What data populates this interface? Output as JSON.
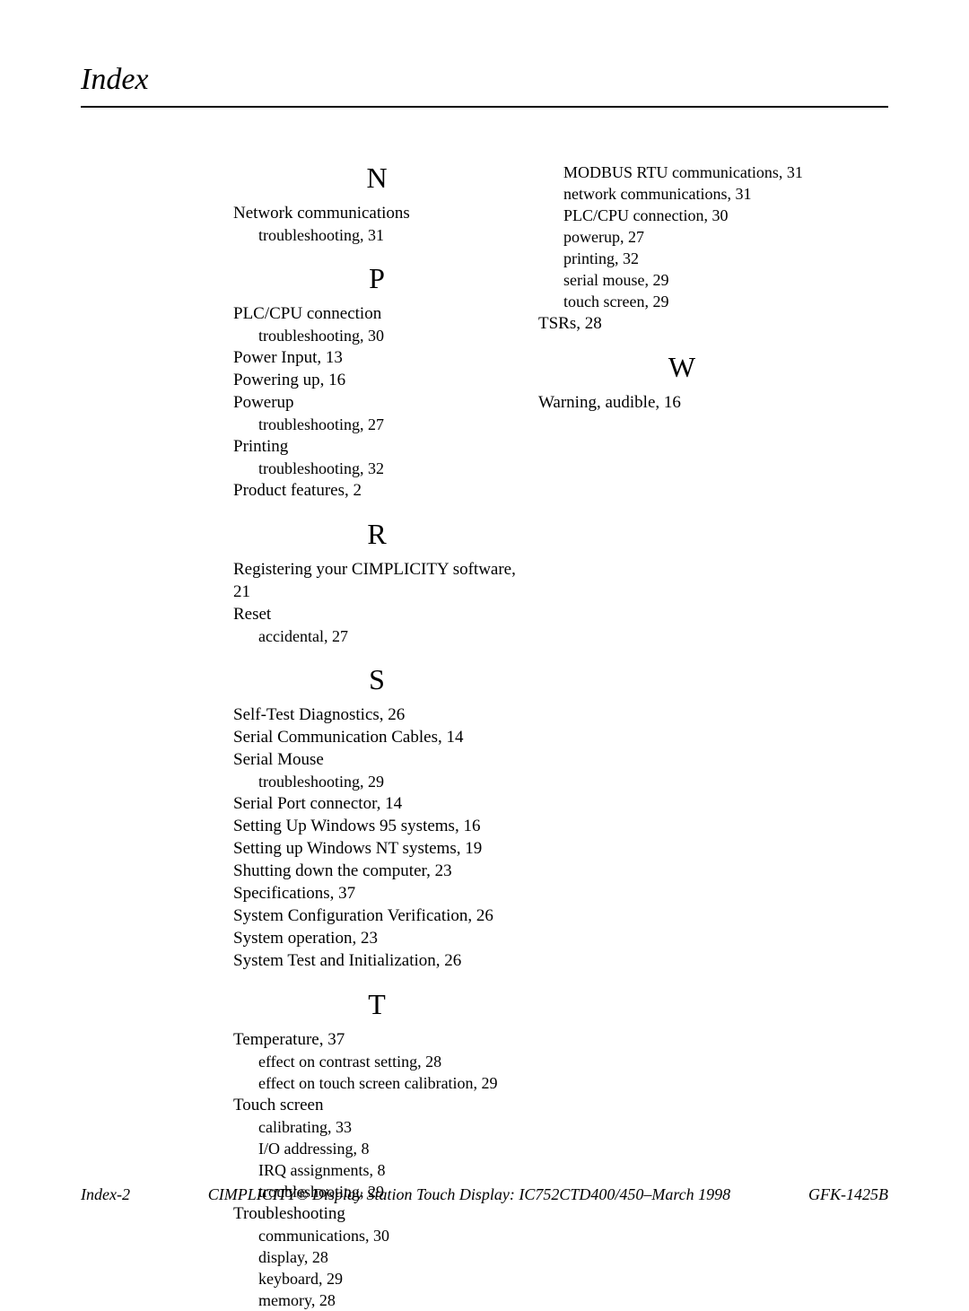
{
  "header": {
    "title": "Index"
  },
  "footer": {
    "left": "Index-2",
    "center": "CIMPLICITY® Display Station Touch Display: IC752CTD400/450–March 1998",
    "right": "GFK-1425B"
  },
  "left_column": [
    {
      "type": "letter",
      "text": "N"
    },
    {
      "type": "entry",
      "text": "Network communications"
    },
    {
      "type": "sub",
      "text": "troubleshooting, 31"
    },
    {
      "type": "letter",
      "text": "P"
    },
    {
      "type": "entry",
      "text": "PLC/CPU connection"
    },
    {
      "type": "sub",
      "text": "troubleshooting, 30"
    },
    {
      "type": "entry",
      "text": "Power Input, 13"
    },
    {
      "type": "entry",
      "text": "Powering up, 16"
    },
    {
      "type": "entry",
      "text": "Powerup"
    },
    {
      "type": "sub",
      "text": "troubleshooting, 27"
    },
    {
      "type": "entry",
      "text": "Printing"
    },
    {
      "type": "sub",
      "text": "troubleshooting, 32"
    },
    {
      "type": "entry",
      "text": "Product features, 2"
    },
    {
      "type": "letter",
      "text": "R"
    },
    {
      "type": "entry",
      "text": "Registering your CIMPLICITY software, 21"
    },
    {
      "type": "entry",
      "text": "Reset"
    },
    {
      "type": "sub",
      "text": "accidental, 27"
    },
    {
      "type": "letter",
      "text": "S"
    },
    {
      "type": "entry",
      "text": "Self-Test Diagnostics, 26"
    },
    {
      "type": "entry",
      "text": "Serial Communication Cables, 14"
    },
    {
      "type": "entry",
      "text": "Serial Mouse"
    },
    {
      "type": "sub",
      "text": "troubleshooting, 29"
    },
    {
      "type": "entry",
      "text": "Serial Port connector, 14"
    },
    {
      "type": "entry",
      "text": "Setting Up Windows 95 systems, 16"
    },
    {
      "type": "entry",
      "text": "Setting up Windows NT systems, 19"
    },
    {
      "type": "entry",
      "text": "Shutting down the computer, 23"
    },
    {
      "type": "entry",
      "text": "Specifications, 37"
    },
    {
      "type": "entry",
      "text": "System Configuration Verification, 26"
    },
    {
      "type": "entry",
      "text": "System operation, 23"
    },
    {
      "type": "entry",
      "text": "System Test and Initialization, 26"
    },
    {
      "type": "letter",
      "text": "T"
    },
    {
      "type": "entry",
      "text": "Temperature, 37"
    },
    {
      "type": "sub",
      "text": "effect on contrast setting, 28"
    },
    {
      "type": "sub",
      "text": "effect on touch screen calibration, 29"
    },
    {
      "type": "entry",
      "text": "Touch screen"
    },
    {
      "type": "sub",
      "text": "calibrating, 33"
    },
    {
      "type": "sub",
      "text": "I/O addressing, 8"
    },
    {
      "type": "sub",
      "text": "IRQ assignments, 8"
    },
    {
      "type": "sub",
      "text": "troubleshooting, 29"
    },
    {
      "type": "entry",
      "text": "Troubleshooting"
    },
    {
      "type": "sub",
      "text": "communications, 30"
    },
    {
      "type": "sub",
      "text": "display, 28"
    },
    {
      "type": "sub",
      "text": "keyboard, 29"
    },
    {
      "type": "sub",
      "text": "memory, 28"
    }
  ],
  "right_column": [
    {
      "type": "sub",
      "text": "MODBUS RTU communications, 31"
    },
    {
      "type": "sub",
      "text": "network communications, 31"
    },
    {
      "type": "sub",
      "text": "PLC/CPU connection, 30"
    },
    {
      "type": "sub",
      "text": "powerup, 27"
    },
    {
      "type": "sub",
      "text": "printing, 32"
    },
    {
      "type": "sub",
      "text": "serial mouse, 29"
    },
    {
      "type": "sub",
      "text": "touch screen, 29"
    },
    {
      "type": "entry",
      "text": "TSRs, 28"
    },
    {
      "type": "letter",
      "text": "W"
    },
    {
      "type": "entry",
      "text": "Warning, audible, 16"
    }
  ]
}
